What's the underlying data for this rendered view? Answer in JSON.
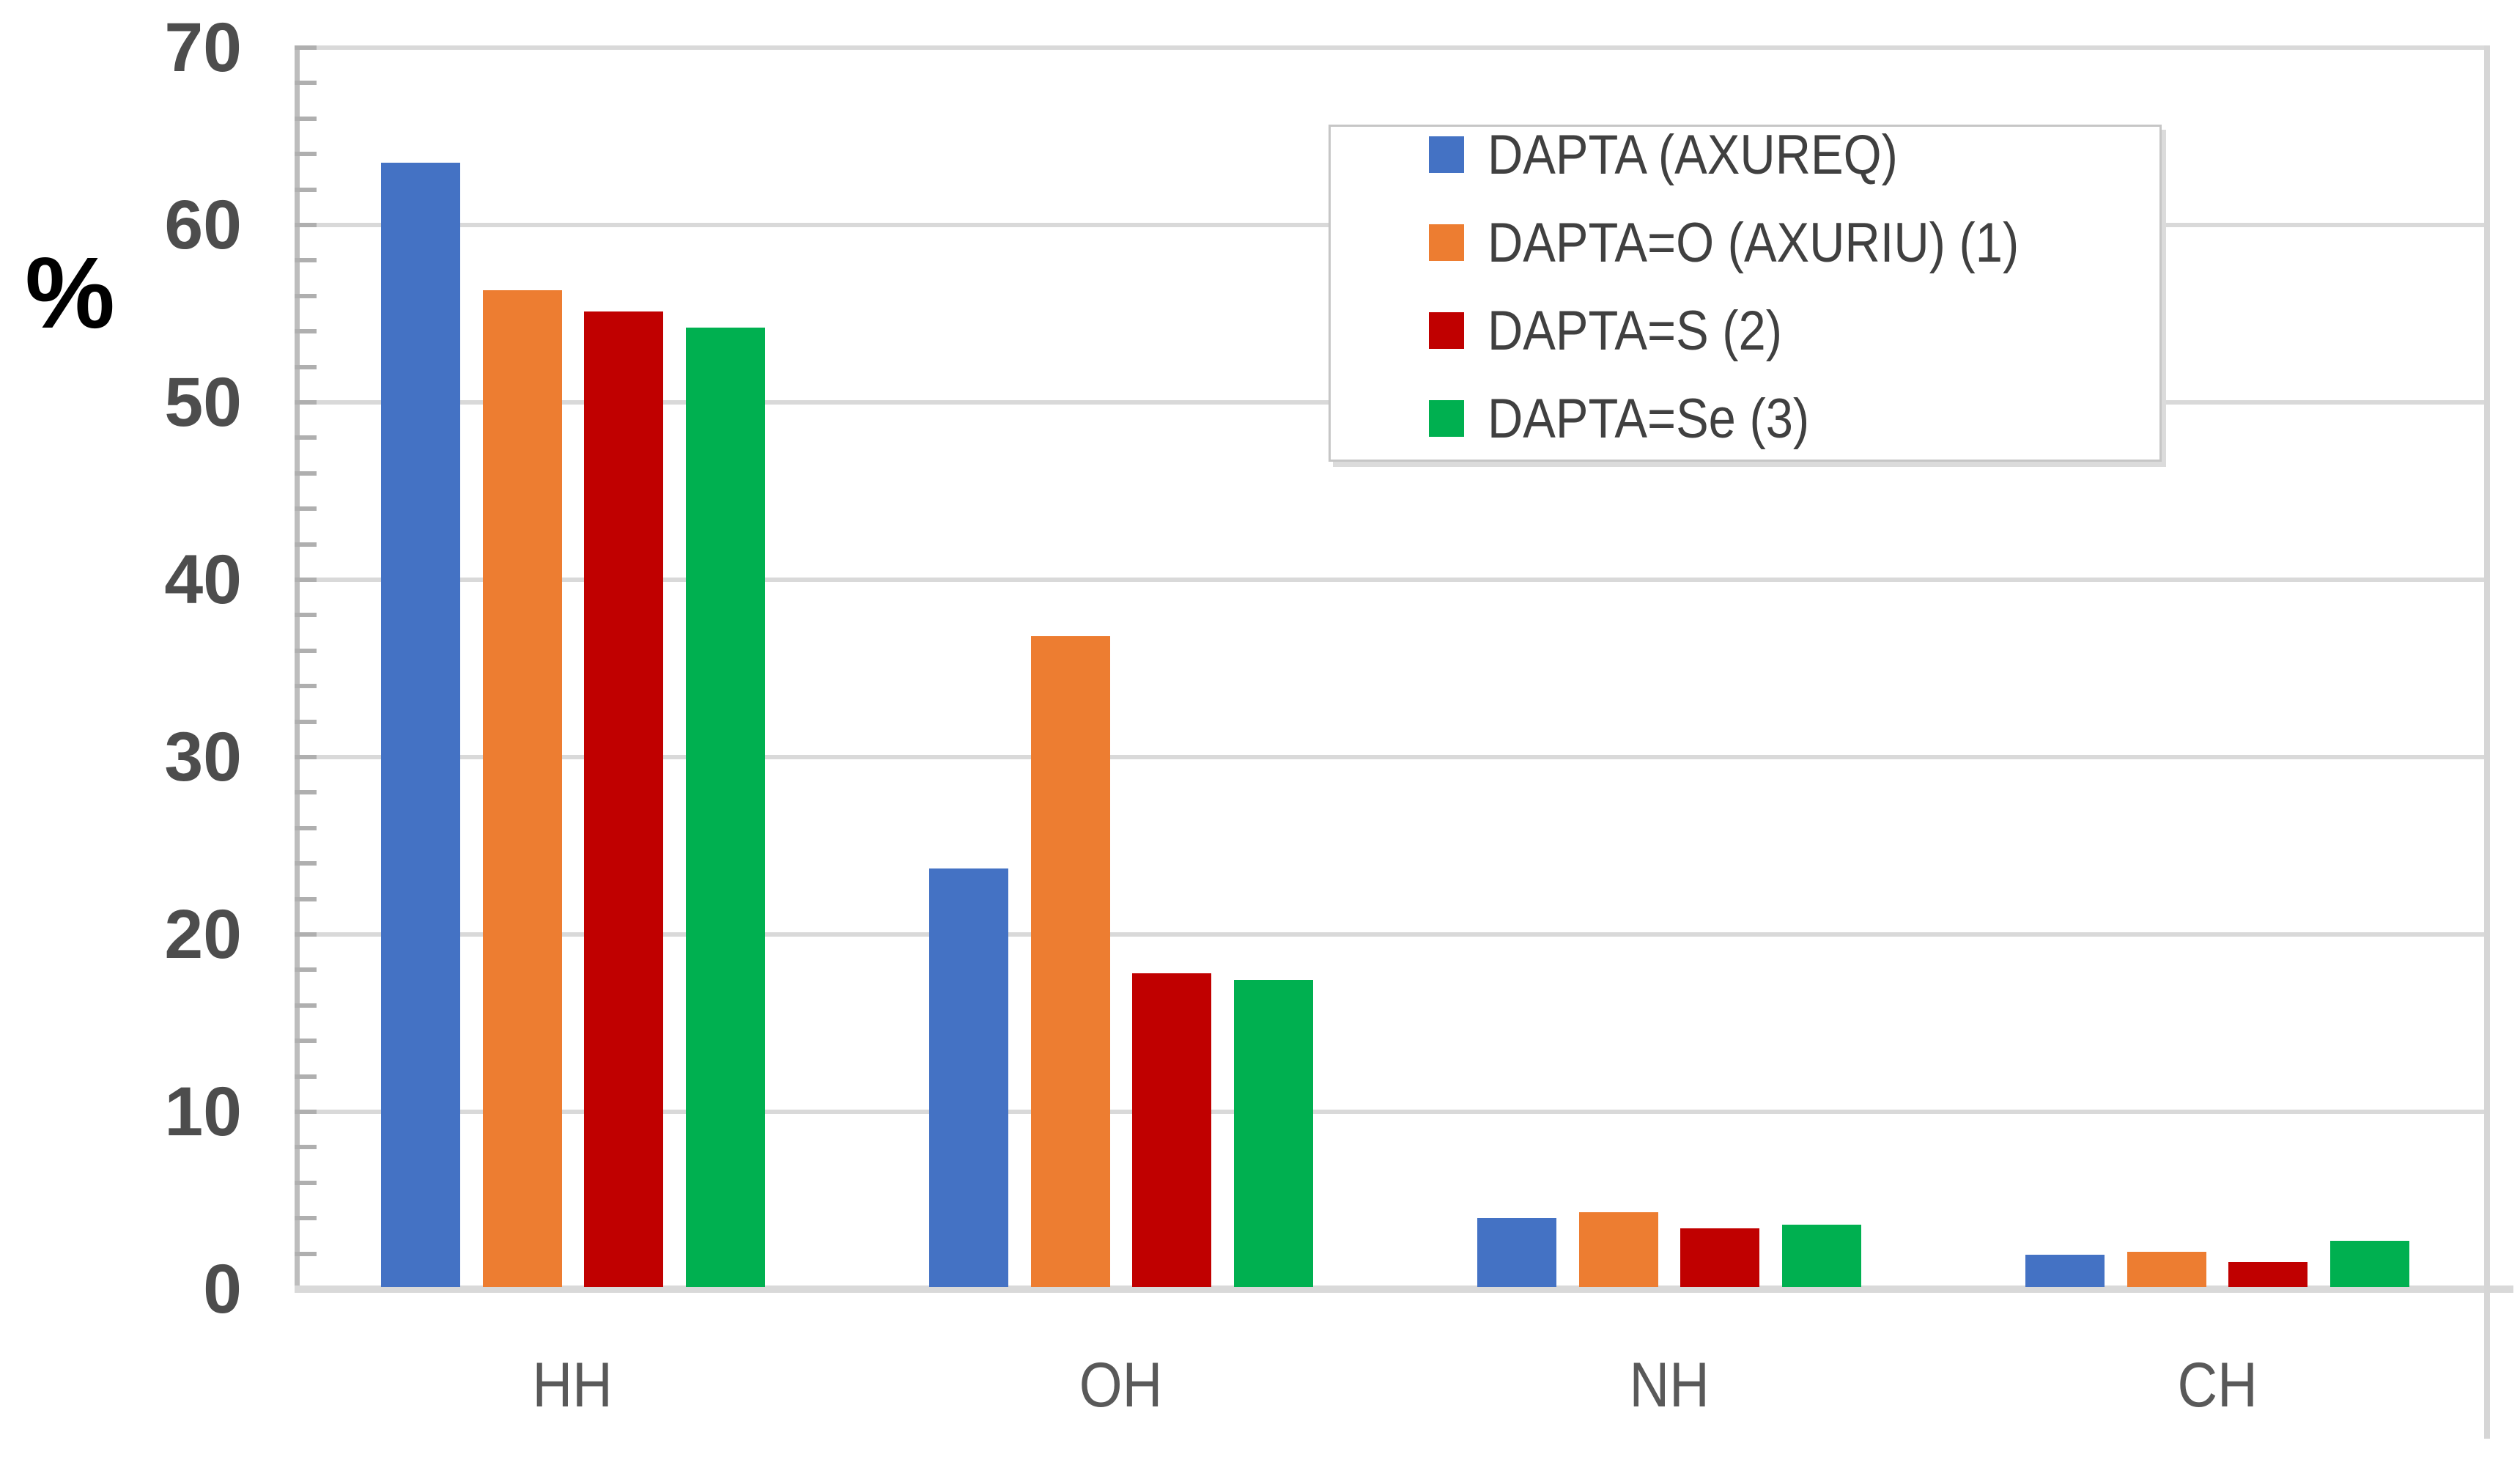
{
  "chart_data": {
    "type": "bar",
    "title": "",
    "ylabel": "%",
    "xlabel": "",
    "categories": [
      "HH",
      "OH",
      "NH",
      "CH"
    ],
    "series": [
      {
        "name": "DAPTA (AXUREQ)",
        "color": "#4472C4",
        "values": [
          63.4,
          23.6,
          3.9,
          1.8
        ]
      },
      {
        "name": "DAPTA=O (AXURIU) (1)",
        "color": "#ED7D31",
        "values": [
          56.2,
          36.7,
          4.2,
          2.0
        ]
      },
      {
        "name": "DAPTA=S (2)",
        "color": "#C00000",
        "values": [
          55.0,
          17.7,
          3.3,
          1.4
        ]
      },
      {
        "name": "DAPTA=Se (3)",
        "color": "#00B050",
        "values": [
          54.1,
          17.3,
          3.5,
          2.6
        ]
      }
    ],
    "ylim": [
      0,
      70
    ],
    "yticks": [
      0,
      10,
      20,
      30,
      40,
      50,
      60,
      70
    ],
    "minor_tick_interval": 2,
    "grid": true,
    "legend_position": "top-right"
  },
  "colors": {
    "gridline": "#D9D9D9",
    "axis_line": "#BDBDBD",
    "tick": "#AFAFAF",
    "baseline": "#D9D9D9",
    "right_border": "#D6D6D6",
    "y_label_text": "#4D4D4D",
    "x_label_text": "#595959",
    "legend_text": "#404040",
    "percent_label_text": "#000000"
  }
}
